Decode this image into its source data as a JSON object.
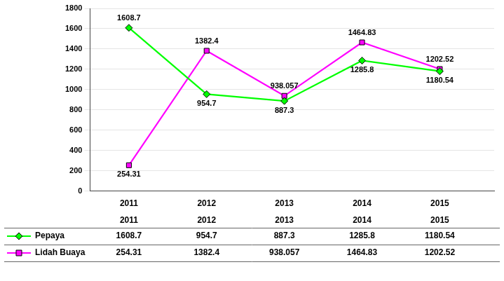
{
  "chart_data": {
    "type": "line",
    "x": [
      2011,
      2012,
      2013,
      2014,
      2015
    ],
    "xlim": [
      2010.5,
      2015.7
    ],
    "xticks": [
      2011,
      2012,
      2013,
      2014,
      2015
    ],
    "ylim": [
      0,
      1800
    ],
    "yticks": [
      0,
      200,
      400,
      600,
      800,
      1000,
      1200,
      1400,
      1600,
      1800
    ],
    "grid": "y",
    "data_labels": true,
    "legend": "bottom",
    "series": [
      {
        "name": "Pepaya",
        "color": "#00FF00",
        "marker": "diamond",
        "line_style": "solid",
        "values": [
          1608.7,
          954.7,
          887.3,
          1285.8,
          1180.54
        ]
      },
      {
        "name": "Lidah Buaya",
        "color": "#FF00FF",
        "marker": "square",
        "line_style": "solid",
        "values": [
          254.31,
          1382.4,
          938.057,
          1464.83,
          1202.52
        ]
      }
    ]
  }
}
